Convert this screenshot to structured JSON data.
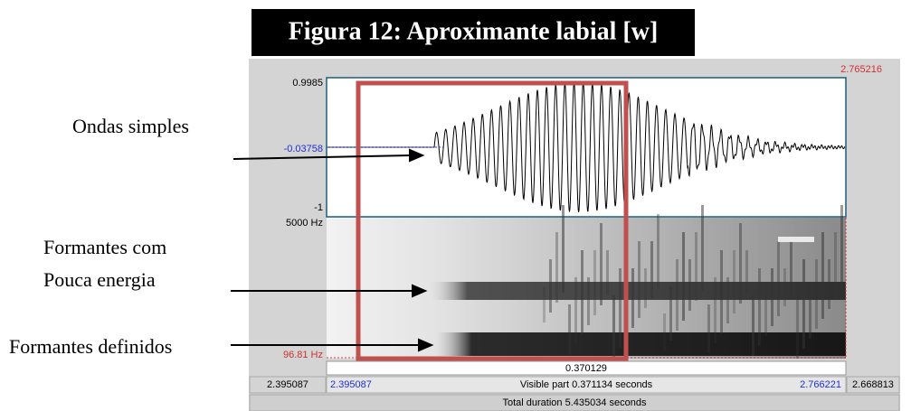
{
  "title": "Figura 12: Aproximante labial [w]",
  "annotations": [
    "Ondas simples",
    "Formantes com",
    "Pouca energia",
    "Formantes definidos"
  ],
  "praat": {
    "top_time": "2.765216",
    "amp_max": "0.9985",
    "amp_center": "-0.03758",
    "amp_min": "-1",
    "freq_max": "5000 Hz",
    "freq_min": "96.81 Hz",
    "selection_duration": "0.370129",
    "left_time_outer": "2.395087",
    "left_time_inner": "2.395087",
    "visible_part": "Visible part 0.371134 seconds",
    "right_time_inner": "2.766221",
    "right_time_outer": "2.668813",
    "total_duration": "Total duration 5.435034 seconds"
  }
}
